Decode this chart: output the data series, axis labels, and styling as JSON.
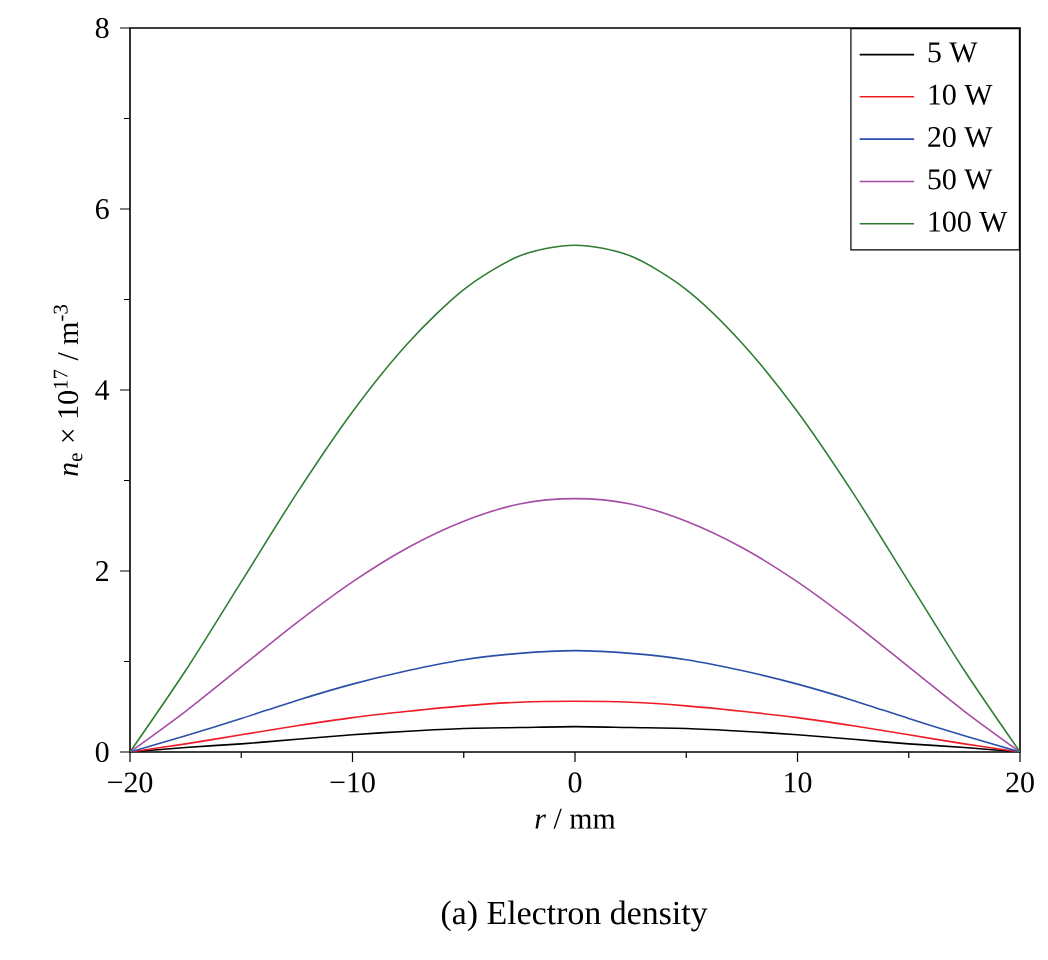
{
  "chart_data": {
    "type": "line",
    "xlabel": "*r* / mm",
    "ylabel": "*n*$_{e}$ × 10$^{17}$ / m$^{-3}$",
    "annotations": [
      "(a) Electron density"
    ],
    "x": [
      -20,
      -17.5,
      -15,
      -12.5,
      -10,
      -7.5,
      -5,
      -2.5,
      0,
      2.5,
      5,
      7.5,
      10,
      12.5,
      15,
      17.5,
      20
    ],
    "series": [
      {
        "name": "5 W",
        "color": "#000000",
        "values": [
          0,
          0.05,
          0.09,
          0.14,
          0.19,
          0.23,
          0.26,
          0.27,
          0.28,
          0.27,
          0.26,
          0.23,
          0.19,
          0.14,
          0.09,
          0.05,
          0
        ]
      },
      {
        "name": "10 W",
        "color": "#ee1c25",
        "values": [
          0,
          0.09,
          0.19,
          0.29,
          0.38,
          0.45,
          0.51,
          0.55,
          0.56,
          0.55,
          0.51,
          0.45,
          0.38,
          0.29,
          0.19,
          0.09,
          0
        ]
      },
      {
        "name": "20 W",
        "color": "#2a4fa8",
        "values": [
          0,
          0.18,
          0.37,
          0.57,
          0.75,
          0.9,
          1.02,
          1.09,
          1.12,
          1.09,
          1.02,
          0.9,
          0.75,
          0.57,
          0.37,
          0.18,
          0
        ]
      },
      {
        "name": "50 W",
        "color": "#a64ca6",
        "values": [
          0,
          0.45,
          0.94,
          1.43,
          1.88,
          2.26,
          2.55,
          2.74,
          2.8,
          2.74,
          2.55,
          2.26,
          1.88,
          1.43,
          0.94,
          0.45,
          0
        ]
      },
      {
        "name": "100 W",
        "color": "#2e7d32",
        "values": [
          0,
          0.9,
          1.88,
          2.86,
          3.76,
          4.52,
          5.11,
          5.48,
          5.6,
          5.48,
          5.11,
          4.52,
          3.76,
          2.86,
          1.88,
          0.9,
          0
        ]
      }
    ],
    "xlim": [
      -20,
      20
    ],
    "xticks": [
      {
        "value": -20,
        "label": "−20"
      },
      {
        "value": -10,
        "label": "−10"
      },
      0,
      10,
      20
    ],
    "ylim": [
      0,
      8
    ],
    "yticks": [
      0,
      2,
      4,
      6,
      8
    ],
    "legend": "top right",
    "marker": "none",
    "line_style": "solid"
  }
}
